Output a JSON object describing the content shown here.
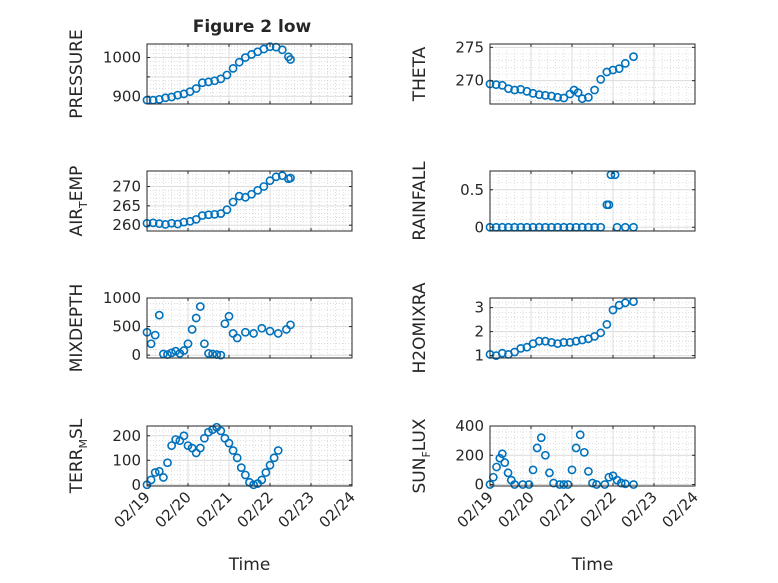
{
  "figure": {
    "title": "Figure 2 low"
  },
  "chart_data": [
    {
      "type": "scatter",
      "ylabel": "PRESSURE",
      "xlabel": "",
      "xlim": [
        0,
        5
      ],
      "ylim": [
        880,
        1035
      ],
      "yticks": [
        900,
        950,
        1000
      ],
      "ytick_labels": [
        "900",
        "",
        "1000"
      ],
      "xticks": [
        0,
        1,
        2,
        3,
        4,
        5
      ],
      "xtick_labels": [],
      "grid": true,
      "series": [
        {
          "values": [
            [
              0.0,
              890
            ],
            [
              0.15,
              890
            ],
            [
              0.3,
              892
            ],
            [
              0.45,
              896
            ],
            [
              0.6,
              898
            ],
            [
              0.75,
              903
            ],
            [
              0.9,
              906
            ],
            [
              1.05,
              912
            ],
            [
              1.2,
              920
            ],
            [
              1.35,
              935
            ],
            [
              1.5,
              937
            ],
            [
              1.65,
              940
            ],
            [
              1.8,
              945
            ],
            [
              1.95,
              955
            ],
            [
              2.1,
              972
            ],
            [
              2.25,
              988
            ],
            [
              2.4,
              1000
            ],
            [
              2.55,
              1008
            ],
            [
              2.7,
              1015
            ],
            [
              2.85,
              1022
            ],
            [
              3.0,
              1028
            ],
            [
              3.15,
              1027
            ],
            [
              3.3,
              1020
            ],
            [
              3.45,
              1002
            ],
            [
              3.5,
              995
            ]
          ]
        }
      ]
    },
    {
      "type": "scatter",
      "ylabel": "THETA",
      "xlabel": "",
      "xlim": [
        0,
        5
      ],
      "ylim": [
        266.5,
        275.5
      ],
      "yticks": [
        270,
        275
      ],
      "ytick_labels": [
        "270",
        "275"
      ],
      "xticks": [
        0,
        1,
        2,
        3,
        4,
        5
      ],
      "xtick_labels": [],
      "grid": true,
      "series": [
        {
          "values": [
            [
              0.0,
              269.5
            ],
            [
              0.15,
              269.4
            ],
            [
              0.3,
              269.3
            ],
            [
              0.45,
              268.8
            ],
            [
              0.6,
              268.6
            ],
            [
              0.75,
              268.7
            ],
            [
              0.9,
              268.4
            ],
            [
              1.05,
              268.1
            ],
            [
              1.2,
              267.9
            ],
            [
              1.35,
              267.8
            ],
            [
              1.5,
              267.7
            ],
            [
              1.65,
              267.5
            ],
            [
              1.8,
              267.4
            ],
            [
              1.95,
              268.0
            ],
            [
              2.05,
              268.6
            ],
            [
              2.15,
              268.2
            ],
            [
              2.25,
              267.3
            ],
            [
              2.4,
              267.5
            ],
            [
              2.55,
              268.6
            ],
            [
              2.7,
              270.2
            ],
            [
              2.85,
              271.3
            ],
            [
              3.0,
              271.6
            ],
            [
              3.15,
              271.8
            ],
            [
              3.3,
              272.6
            ],
            [
              3.5,
              273.6
            ]
          ]
        }
      ]
    },
    {
      "type": "scatter",
      "ylabel": "AIR_TEMP",
      "xlabel": "",
      "xlim": [
        0,
        5
      ],
      "ylim": [
        258.5,
        274
      ],
      "yticks": [
        260,
        265,
        270
      ],
      "ytick_labels": [
        "260",
        "265",
        "270"
      ],
      "xticks": [
        0,
        1,
        2,
        3,
        4,
        5
      ],
      "xtick_labels": [],
      "grid": true,
      "series": [
        {
          "values": [
            [
              0.0,
              260.5
            ],
            [
              0.15,
              260.6
            ],
            [
              0.3,
              260.4
            ],
            [
              0.45,
              260.2
            ],
            [
              0.6,
              260.5
            ],
            [
              0.75,
              260.3
            ],
            [
              0.9,
              260.8
            ],
            [
              1.05,
              261.0
            ],
            [
              1.2,
              261.5
            ],
            [
              1.35,
              262.5
            ],
            [
              1.5,
              262.7
            ],
            [
              1.65,
              262.8
            ],
            [
              1.8,
              263.0
            ],
            [
              1.95,
              264.0
            ],
            [
              2.1,
              266.0
            ],
            [
              2.25,
              267.5
            ],
            [
              2.4,
              267.2
            ],
            [
              2.55,
              268.0
            ],
            [
              2.7,
              269.0
            ],
            [
              2.85,
              270.0
            ],
            [
              3.0,
              271.5
            ],
            [
              3.15,
              272.5
            ],
            [
              3.3,
              272.8
            ],
            [
              3.45,
              272.0
            ],
            [
              3.5,
              272.2
            ]
          ]
        }
      ]
    },
    {
      "type": "scatter",
      "ylabel": "RAINFALL",
      "xlabel": "",
      "xlim": [
        0,
        5
      ],
      "ylim": [
        -0.05,
        0.75
      ],
      "yticks": [
        0,
        0.5
      ],
      "ytick_labels": [
        "0",
        "0.5"
      ],
      "xticks": [
        0,
        1,
        2,
        3,
        4,
        5
      ],
      "xtick_labels": [],
      "grid": true,
      "series": [
        {
          "values": [
            [
              0.0,
              0
            ],
            [
              0.15,
              0
            ],
            [
              0.3,
              0
            ],
            [
              0.45,
              0
            ],
            [
              0.6,
              0
            ],
            [
              0.75,
              0
            ],
            [
              0.9,
              0
            ],
            [
              1.05,
              0
            ],
            [
              1.2,
              0
            ],
            [
              1.35,
              0
            ],
            [
              1.5,
              0
            ],
            [
              1.65,
              0
            ],
            [
              1.8,
              0
            ],
            [
              1.95,
              0
            ],
            [
              2.1,
              0
            ],
            [
              2.25,
              0
            ],
            [
              2.4,
              0
            ],
            [
              2.55,
              0
            ],
            [
              2.7,
              0
            ],
            [
              2.85,
              0.3
            ],
            [
              2.9,
              0.3
            ],
            [
              2.95,
              0.7
            ],
            [
              3.05,
              0.7
            ],
            [
              3.1,
              0
            ],
            [
              3.3,
              0
            ],
            [
              3.5,
              0
            ]
          ]
        }
      ]
    },
    {
      "type": "scatter",
      "ylabel": "MIXDEPTH",
      "xlabel": "",
      "xlim": [
        0,
        5
      ],
      "ylim": [
        -50,
        1000
      ],
      "yticks": [
        0,
        500,
        1000
      ],
      "ytick_labels": [
        "0",
        "500",
        "1000"
      ],
      "xticks": [
        0,
        1,
        2,
        3,
        4,
        5
      ],
      "xtick_labels": [],
      "grid": true,
      "series": [
        {
          "values": [
            [
              0.0,
              400
            ],
            [
              0.1,
              200
            ],
            [
              0.2,
              350
            ],
            [
              0.3,
              700
            ],
            [
              0.4,
              20
            ],
            [
              0.5,
              10
            ],
            [
              0.6,
              40
            ],
            [
              0.7,
              70
            ],
            [
              0.8,
              30
            ],
            [
              0.9,
              80
            ],
            [
              1.0,
              200
            ],
            [
              1.1,
              450
            ],
            [
              1.2,
              650
            ],
            [
              1.3,
              850
            ],
            [
              1.4,
              200
            ],
            [
              1.5,
              30
            ],
            [
              1.6,
              20
            ],
            [
              1.7,
              10
            ],
            [
              1.8,
              0
            ],
            [
              1.9,
              550
            ],
            [
              2.0,
              680
            ],
            [
              2.1,
              380
            ],
            [
              2.2,
              300
            ],
            [
              2.4,
              400
            ],
            [
              2.6,
              380
            ],
            [
              2.8,
              470
            ],
            [
              3.0,
              420
            ],
            [
              3.2,
              380
            ],
            [
              3.4,
              450
            ],
            [
              3.5,
              530
            ]
          ]
        }
      ]
    },
    {
      "type": "scatter",
      "ylabel": "H2OMIXRA",
      "xlabel": "",
      "xlim": [
        0,
        5
      ],
      "ylim": [
        0.9,
        3.4
      ],
      "yticks": [
        1,
        2,
        3
      ],
      "ytick_labels": [
        "1",
        "2",
        "3"
      ],
      "xticks": [
        0,
        1,
        2,
        3,
        4,
        5
      ],
      "xtick_labels": [],
      "grid": true,
      "series": [
        {
          "values": [
            [
              0.0,
              1.05
            ],
            [
              0.15,
              1.0
            ],
            [
              0.3,
              1.1
            ],
            [
              0.45,
              1.05
            ],
            [
              0.6,
              1.15
            ],
            [
              0.75,
              1.3
            ],
            [
              0.9,
              1.35
            ],
            [
              1.05,
              1.5
            ],
            [
              1.2,
              1.6
            ],
            [
              1.35,
              1.6
            ],
            [
              1.5,
              1.55
            ],
            [
              1.65,
              1.5
            ],
            [
              1.8,
              1.55
            ],
            [
              1.95,
              1.55
            ],
            [
              2.1,
              1.6
            ],
            [
              2.25,
              1.65
            ],
            [
              2.4,
              1.7
            ],
            [
              2.55,
              1.8
            ],
            [
              2.7,
              1.95
            ],
            [
              2.85,
              2.3
            ],
            [
              3.0,
              2.9
            ],
            [
              3.15,
              3.1
            ],
            [
              3.3,
              3.2
            ],
            [
              3.5,
              3.25
            ]
          ]
        }
      ]
    },
    {
      "type": "scatter",
      "ylabel": "TERR_MSL",
      "xlabel": "Time",
      "xlim": [
        0,
        5
      ],
      "ylim": [
        -5,
        240
      ],
      "yticks": [
        0,
        100,
        200
      ],
      "ytick_labels": [
        "0",
        "100",
        "200"
      ],
      "xticks": [
        0,
        1,
        2,
        3,
        4,
        5
      ],
      "xtick_labels": [
        "02/19",
        "02/20",
        "02/21",
        "02/22",
        "02/23",
        "02/24"
      ],
      "grid": true,
      "series": [
        {
          "values": [
            [
              0.0,
              0
            ],
            [
              0.1,
              20
            ],
            [
              0.2,
              50
            ],
            [
              0.3,
              55
            ],
            [
              0.4,
              30
            ],
            [
              0.5,
              90
            ],
            [
              0.6,
              160
            ],
            [
              0.7,
              185
            ],
            [
              0.8,
              180
            ],
            [
              0.9,
              200
            ],
            [
              1.0,
              160
            ],
            [
              1.1,
              150
            ],
            [
              1.2,
              130
            ],
            [
              1.3,
              150
            ],
            [
              1.4,
              190
            ],
            [
              1.5,
              215
            ],
            [
              1.6,
              225
            ],
            [
              1.7,
              235
            ],
            [
              1.8,
              220
            ],
            [
              1.9,
              190
            ],
            [
              2.0,
              170
            ],
            [
              2.1,
              140
            ],
            [
              2.2,
              110
            ],
            [
              2.3,
              70
            ],
            [
              2.4,
              40
            ],
            [
              2.5,
              10
            ],
            [
              2.6,
              0
            ],
            [
              2.7,
              5
            ],
            [
              2.8,
              20
            ],
            [
              2.9,
              50
            ],
            [
              3.0,
              80
            ],
            [
              3.1,
              110
            ],
            [
              3.2,
              140
            ]
          ]
        }
      ]
    },
    {
      "type": "scatter",
      "ylabel": "SUN_FLUX",
      "xlabel": "Time",
      "xlim": [
        0,
        5
      ],
      "ylim": [
        -10,
        400
      ],
      "yticks": [
        0,
        200,
        400
      ],
      "ytick_labels": [
        "0",
        "200",
        "400"
      ],
      "xticks": [
        0,
        1,
        2,
        3,
        4,
        5
      ],
      "xtick_labels": [
        "02/19",
        "02/20",
        "02/21",
        "02/22",
        "02/23",
        "02/24"
      ],
      "grid": true,
      "series": [
        {
          "values": [
            [
              0.0,
              0
            ],
            [
              0.08,
              50
            ],
            [
              0.16,
              120
            ],
            [
              0.24,
              180
            ],
            [
              0.3,
              210
            ],
            [
              0.36,
              150
            ],
            [
              0.44,
              80
            ],
            [
              0.52,
              30
            ],
            [
              0.6,
              0
            ],
            [
              0.8,
              0
            ],
            [
              0.95,
              0
            ],
            [
              1.05,
              100
            ],
            [
              1.15,
              250
            ],
            [
              1.25,
              320
            ],
            [
              1.35,
              200
            ],
            [
              1.45,
              80
            ],
            [
              1.55,
              10
            ],
            [
              1.7,
              0
            ],
            [
              1.8,
              0
            ],
            [
              1.9,
              0
            ],
            [
              2.0,
              100
            ],
            [
              2.1,
              250
            ],
            [
              2.2,
              340
            ],
            [
              2.3,
              220
            ],
            [
              2.4,
              90
            ],
            [
              2.5,
              10
            ],
            [
              2.6,
              0
            ],
            [
              2.8,
              0
            ],
            [
              2.9,
              50
            ],
            [
              3.0,
              60
            ],
            [
              3.1,
              30
            ],
            [
              3.2,
              10
            ],
            [
              3.3,
              5
            ],
            [
              3.5,
              0
            ]
          ]
        }
      ]
    }
  ]
}
